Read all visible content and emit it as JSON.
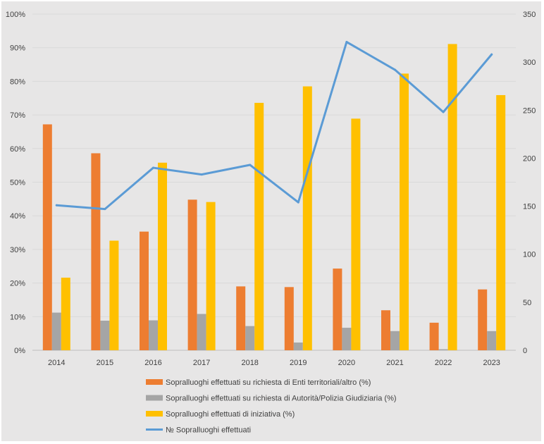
{
  "chart_data": {
    "type": "bar",
    "categories": [
      "2014",
      "2015",
      "2016",
      "2017",
      "2018",
      "2019",
      "2020",
      "2021",
      "2022",
      "2023"
    ],
    "series": [
      {
        "name": "Sopralluoghi effettuati su richiesta di Enti territoriali/altro (%)",
        "type": "bar",
        "axis": "left",
        "color": "#ED7D31",
        "values": [
          67.2,
          58.6,
          35.3,
          44.8,
          19.0,
          18.8,
          24.3,
          11.9,
          8.2,
          18.1
        ]
      },
      {
        "name": "Sopralluoghi effettuati su richiesta di Autorità/Polizia Giudiziaria (%)",
        "type": "bar",
        "axis": "left",
        "color": "#A5A5A5",
        "values": [
          11.2,
          8.8,
          8.9,
          10.8,
          7.2,
          2.3,
          6.7,
          5.7,
          0.3,
          5.7
        ]
      },
      {
        "name": "Sopralluoghi effettuati di iniziativa (%)",
        "type": "bar",
        "axis": "left",
        "color": "#FFC000",
        "values": [
          21.6,
          32.6,
          55.8,
          44.1,
          73.6,
          78.5,
          68.9,
          82.3,
          91.1,
          75.9
        ]
      },
      {
        "name": "№ Sopralluoghi effettuati",
        "type": "line",
        "axis": "right",
        "color": "#5B9BD5",
        "values": [
          151,
          147,
          190,
          183,
          193,
          154,
          321,
          292,
          248,
          308
        ]
      }
    ],
    "y_left": {
      "ylim": [
        0,
        100
      ],
      "ticks": [
        "0%",
        "10%",
        "20%",
        "30%",
        "40%",
        "50%",
        "60%",
        "70%",
        "80%",
        "90%",
        "100%"
      ]
    },
    "y_right": {
      "ylim": [
        0,
        350
      ],
      "ticks": [
        "0",
        "50",
        "100",
        "150",
        "200",
        "250",
        "300",
        "350"
      ]
    },
    "grid": true,
    "legend_position": "bottom"
  }
}
